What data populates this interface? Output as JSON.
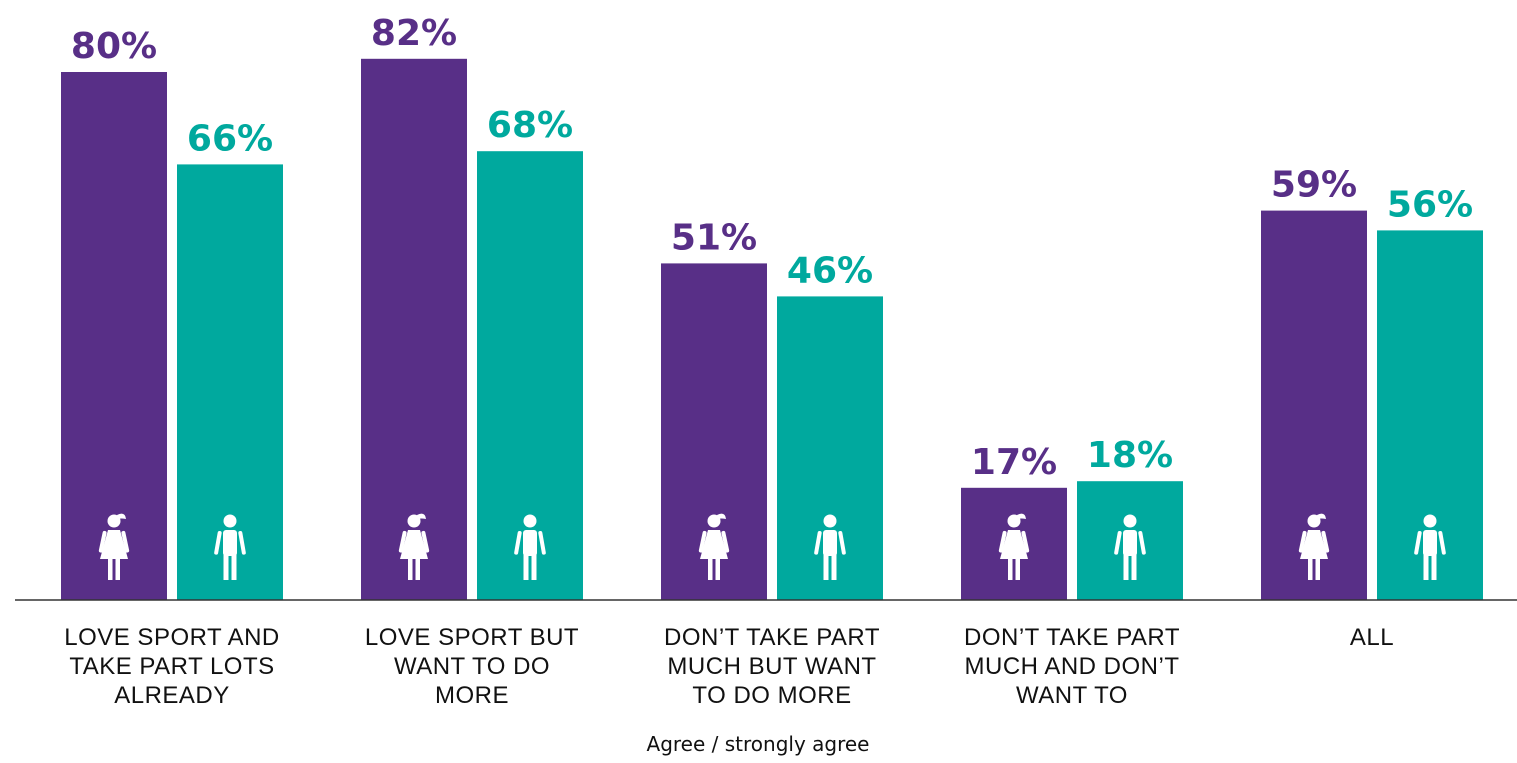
{
  "chart_data": {
    "type": "bar",
    "categories": [
      [
        "LOVE SPORT AND",
        "TAKE PART LOTS",
        "ALREADY"
      ],
      [
        "LOVE SPORT BUT",
        "WANT TO DO",
        "MORE"
      ],
      [
        "DON’T TAKE PART",
        "MUCH BUT WANT",
        "TO DO MORE"
      ],
      [
        "DON’T TAKE PART",
        "MUCH AND DON’T",
        "WANT TO"
      ],
      [
        "ALL"
      ]
    ],
    "series": [
      {
        "icon": "girl-icon",
        "color": "#582F87",
        "values": [
          80,
          82,
          51,
          17,
          59
        ]
      },
      {
        "icon": "boy-icon",
        "color": "#00A99E",
        "values": [
          66,
          68,
          46,
          18,
          56
        ]
      }
    ],
    "value_suffix": "%",
    "xlabel": "Agree / strongly agree",
    "ylabel": "",
    "ylim": [
      0,
      100
    ],
    "grid": false,
    "legend": "none"
  }
}
